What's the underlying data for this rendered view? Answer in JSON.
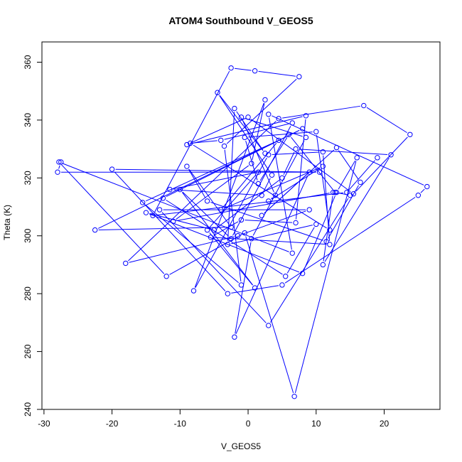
{
  "chart_data": {
    "type": "line",
    "title": "ATOM4 Southbound V_GEOS5",
    "xlabel": "V_GEOS5",
    "ylabel": "Theta (K)",
    "xlim": [
      -30.3,
      28.2
    ],
    "ylim": [
      240,
      367
    ],
    "xticks": [
      -30,
      -20,
      -10,
      0,
      10,
      20
    ],
    "yticks": [
      240,
      260,
      280,
      300,
      320,
      340,
      360
    ],
    "grid": false,
    "legend": "none",
    "line_color": "#0000ff",
    "marker": "open-circle",
    "series": [
      {
        "x": [
          -27.5,
          -28,
          10.5,
          -20,
          -3,
          5,
          25,
          26.3,
          3,
          6.5,
          -27.8,
          -12,
          -0.5,
          6.8,
          16,
          13,
          8,
          -15,
          -5,
          5,
          7,
          21,
          11,
          12.5,
          -11,
          0.5,
          2.5,
          -8,
          3,
          11,
          12,
          -5.5,
          -1,
          7,
          8.5,
          -9,
          0,
          15.5,
          23.8,
          17,
          4.5,
          -18,
          -1.5,
          9,
          -13,
          3,
          15,
          12.8,
          6,
          1.5,
          -0.5,
          10,
          12,
          -8.5,
          -4,
          6.5,
          -2.5,
          -10,
          1,
          -6,
          1.5,
          -11.5,
          2,
          3.5,
          -4.5,
          2.5,
          -2,
          -3,
          10,
          5.5,
          -12.5,
          8,
          -22.5,
          -2.5,
          -9,
          -6,
          11.5,
          16.5,
          13,
          2,
          9,
          -2,
          0.5,
          8.5,
          -1,
          4,
          3,
          11,
          -4,
          4.5,
          -15.5,
          -1,
          -3.5,
          7.5,
          1,
          -2.5,
          -14,
          14.5,
          19
        ],
        "y": [
          325.5,
          322,
          322,
          323,
          280,
          283,
          314,
          317,
          342,
          294,
          325.5,
          286,
          301,
          244.5,
          327,
          315,
          287,
          308,
          302,
          320,
          330,
          328,
          290,
          315,
          305,
          325,
          347,
          281,
          328,
          329,
          297,
          299.5,
          305.5,
          304.5,
          341.5,
          331.5,
          341,
          314.5,
          335,
          345,
          340.5,
          290.5,
          300,
          309,
          309,
          269,
          314,
          315,
          335,
          318,
          334,
          336,
          302,
          332,
          333,
          339,
          299,
          316,
          282,
          302,
          322,
          316,
          314,
          321,
          349.5,
          328.5,
          344,
          297,
          304,
          286,
          313,
          337,
          302,
          303,
          324,
          312,
          298,
          318.5,
          330.5,
          307,
          322,
          265,
          299,
          334,
          341,
          314,
          312,
          324,
          309,
          333,
          311.5,
          283,
          331,
          355,
          357,
          358,
          307,
          315,
          327
        ]
      }
    ]
  }
}
